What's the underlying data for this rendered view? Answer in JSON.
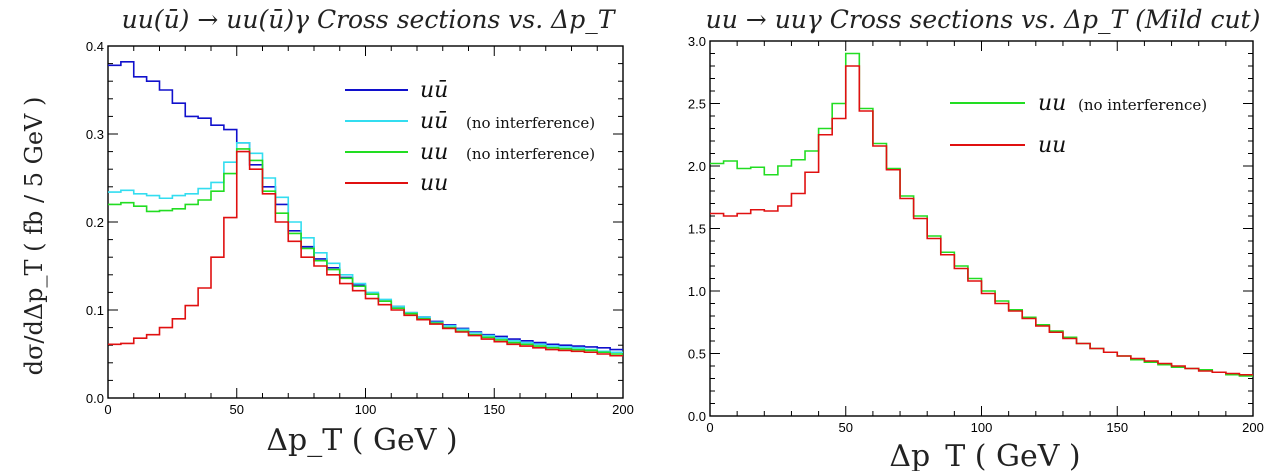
{
  "chart_data": [
    {
      "type": "line",
      "step": true,
      "title": "uu(ū) → uu(ū)γ Cross sections vs. Δp_T",
      "xlabel": "Δp_T   ( GeV )",
      "ylabel": "dσ/dΔp_T   ( fb / 5 GeV )",
      "xlim": [
        0,
        200
      ],
      "ylim": [
        0,
        0.4
      ],
      "xticks": [
        0,
        50,
        100,
        150,
        200
      ],
      "yticks": [
        0.0,
        0.1,
        0.2,
        0.3,
        0.4
      ],
      "ytick_labels": [
        "0.0",
        "0.1",
        "0.2",
        "0.3",
        "0.4"
      ],
      "legend_position": "top-right",
      "bin_edges": [
        0,
        5,
        10,
        15,
        20,
        25,
        30,
        35,
        40,
        45,
        50,
        55,
        60,
        65,
        70,
        75,
        80,
        85,
        90,
        95,
        100,
        105,
        110,
        115,
        120,
        125,
        130,
        135,
        140,
        145,
        150,
        155,
        160,
        165,
        170,
        175,
        180,
        185,
        190,
        195,
        200
      ],
      "series": [
        {
          "name": "uū",
          "note": "",
          "color": "#1010cc",
          "values": [
            0.378,
            0.382,
            0.365,
            0.36,
            0.35,
            0.335,
            0.32,
            0.318,
            0.31,
            0.305,
            0.29,
            0.265,
            0.24,
            0.22,
            0.19,
            0.172,
            0.158,
            0.148,
            0.137,
            0.128,
            0.118,
            0.11,
            0.104,
            0.097,
            0.092,
            0.087,
            0.083,
            0.079,
            0.075,
            0.072,
            0.07,
            0.067,
            0.065,
            0.063,
            0.061,
            0.06,
            0.059,
            0.058,
            0.057,
            0.055
          ]
        },
        {
          "name": "uū",
          "note": "(no interference)",
          "color": "#33ddf0",
          "values": [
            0.234,
            0.236,
            0.232,
            0.23,
            0.227,
            0.23,
            0.232,
            0.238,
            0.245,
            0.268,
            0.29,
            0.278,
            0.25,
            0.228,
            0.2,
            0.182,
            0.165,
            0.153,
            0.14,
            0.13,
            0.12,
            0.112,
            0.104,
            0.097,
            0.092,
            0.086,
            0.082,
            0.078,
            0.074,
            0.071,
            0.068,
            0.065,
            0.063,
            0.061,
            0.059,
            0.058,
            0.057,
            0.055,
            0.053,
            0.052
          ]
        },
        {
          "name": "uu",
          "note": "(no interference)",
          "color": "#22dd22",
          "values": [
            0.22,
            0.222,
            0.218,
            0.212,
            0.213,
            0.215,
            0.22,
            0.225,
            0.235,
            0.255,
            0.283,
            0.27,
            0.235,
            0.21,
            0.187,
            0.17,
            0.156,
            0.146,
            0.136,
            0.127,
            0.118,
            0.11,
            0.102,
            0.096,
            0.09,
            0.085,
            0.08,
            0.076,
            0.072,
            0.069,
            0.066,
            0.063,
            0.061,
            0.059,
            0.057,
            0.056,
            0.055,
            0.054,
            0.052,
            0.05
          ]
        },
        {
          "name": "uu",
          "note": "",
          "color": "#e01010",
          "values": [
            0.061,
            0.062,
            0.068,
            0.072,
            0.08,
            0.09,
            0.105,
            0.125,
            0.16,
            0.205,
            0.28,
            0.26,
            0.232,
            0.2,
            0.178,
            0.16,
            0.15,
            0.14,
            0.13,
            0.122,
            0.113,
            0.106,
            0.1,
            0.094,
            0.089,
            0.084,
            0.079,
            0.075,
            0.071,
            0.067,
            0.064,
            0.061,
            0.059,
            0.057,
            0.055,
            0.054,
            0.053,
            0.052,
            0.05,
            0.048
          ]
        }
      ]
    },
    {
      "type": "line",
      "step": true,
      "title": "uu → uuγ Cross sections vs. Δp_T (Mild cut)",
      "xlabel": "Δp_T   ( GeV )",
      "ylabel": "",
      "xlim": [
        0,
        200
      ],
      "ylim": [
        0,
        3.0
      ],
      "xticks": [
        0,
        50,
        100,
        150,
        200
      ],
      "yticks": [
        0.0,
        0.5,
        1.0,
        1.5,
        2.0,
        2.5,
        3.0
      ],
      "ytick_labels": [
        "0.0",
        "0.5",
        "1.0",
        "1.5",
        "2.0",
        "2.5",
        "3.0"
      ],
      "legend_position": "top-right",
      "bin_edges": [
        0,
        5,
        10,
        15,
        20,
        25,
        30,
        35,
        40,
        45,
        50,
        55,
        60,
        65,
        70,
        75,
        80,
        85,
        90,
        95,
        100,
        105,
        110,
        115,
        120,
        125,
        130,
        135,
        140,
        145,
        150,
        155,
        160,
        165,
        170,
        175,
        180,
        185,
        190,
        195,
        200
      ],
      "series": [
        {
          "name": "uu",
          "note": "(no interference)",
          "color": "#22dd22",
          "values": [
            2.02,
            2.04,
            1.98,
            1.99,
            1.93,
            2.0,
            2.05,
            2.12,
            2.3,
            2.5,
            2.9,
            2.46,
            2.18,
            1.98,
            1.76,
            1.6,
            1.44,
            1.31,
            1.2,
            1.1,
            1.0,
            0.92,
            0.85,
            0.79,
            0.73,
            0.68,
            0.63,
            0.58,
            0.54,
            0.51,
            0.48,
            0.45,
            0.43,
            0.41,
            0.39,
            0.38,
            0.37,
            0.35,
            0.33,
            0.32
          ]
        },
        {
          "name": "uu",
          "note": "",
          "color": "#e01010",
          "values": [
            1.62,
            1.6,
            1.62,
            1.65,
            1.64,
            1.68,
            1.78,
            1.95,
            2.25,
            2.38,
            2.8,
            2.44,
            2.16,
            1.97,
            1.74,
            1.58,
            1.42,
            1.29,
            1.18,
            1.08,
            0.98,
            0.9,
            0.84,
            0.78,
            0.72,
            0.67,
            0.62,
            0.58,
            0.54,
            0.51,
            0.48,
            0.46,
            0.44,
            0.42,
            0.4,
            0.38,
            0.36,
            0.35,
            0.34,
            0.33
          ]
        }
      ]
    }
  ]
}
